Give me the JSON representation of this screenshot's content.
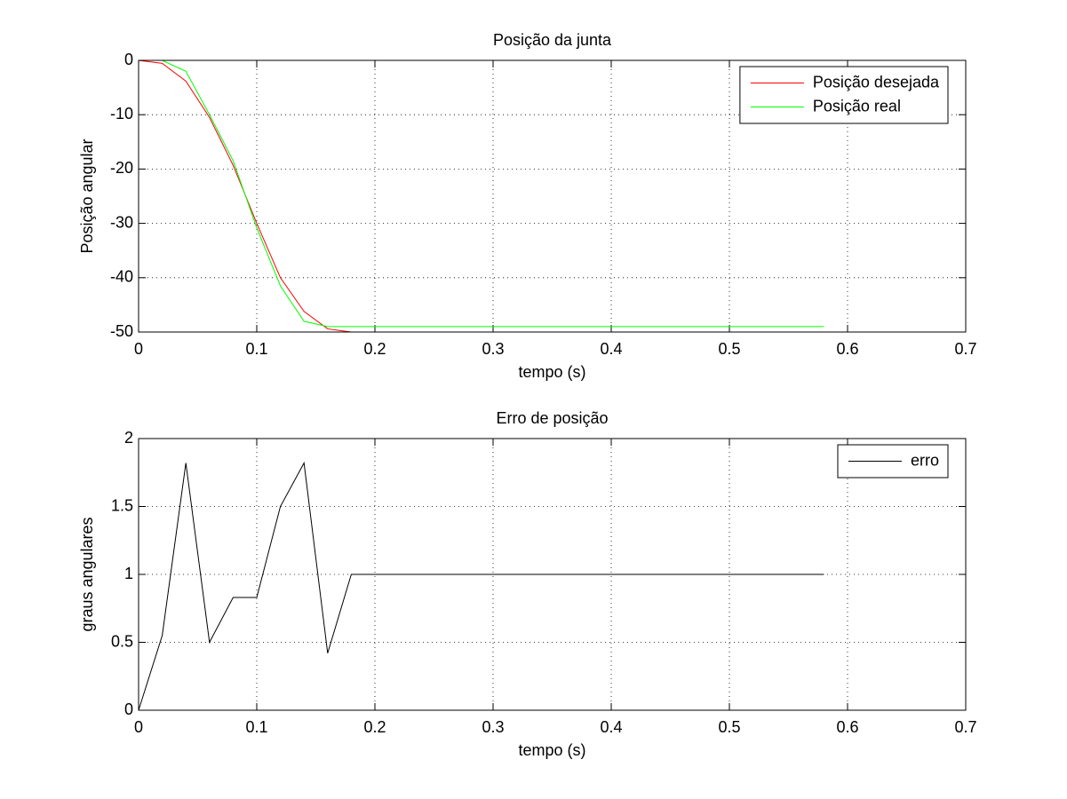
{
  "chart_data": [
    {
      "type": "line",
      "title": "Posição da junta",
      "xlabel": "tempo (s)",
      "ylabel": "Posição angular",
      "x": [
        0,
        0.02,
        0.04,
        0.06,
        0.08,
        0.1,
        0.12,
        0.14,
        0.16,
        0.18,
        0.2,
        0.22,
        0.24,
        0.26,
        0.28,
        0.3,
        0.32,
        0.34,
        0.36,
        0.38,
        0.4,
        0.42,
        0.44,
        0.46,
        0.48,
        0.5,
        0.52,
        0.54,
        0.56,
        0.58
      ],
      "series": [
        {
          "name": "Posição desejada",
          "color": "#ff0000",
          "values": [
            0,
            -0.55,
            -3.82,
            -10.5,
            -19.3,
            -30,
            -40,
            -46.2,
            -49.42,
            -50,
            -50,
            -50,
            -50,
            -50,
            -50,
            -50,
            -50,
            -50,
            -50,
            -50,
            -50,
            -50,
            -50,
            -50,
            -50,
            -50,
            -50,
            -50,
            -50,
            -50
          ]
        },
        {
          "name": "Posição real",
          "color": "#00ff00",
          "values": [
            0,
            0,
            -2,
            -10,
            -18.47,
            -30.83,
            -41.5,
            -48.02,
            -49,
            -49,
            -49,
            -49,
            -49,
            -49,
            -49,
            -49,
            -49,
            -49,
            -49,
            -49,
            -49,
            -49,
            -49,
            -49,
            -49,
            -49,
            -49,
            -49,
            -49,
            -49
          ]
        }
      ],
      "xlim": [
        0,
        0.7
      ],
      "ylim": [
        -50,
        0
      ],
      "xticks": [
        0,
        0.1,
        0.2,
        0.3,
        0.4,
        0.5,
        0.6,
        0.7
      ],
      "yticks": [
        -50,
        -40,
        -30,
        -20,
        -10,
        0
      ],
      "grid": true,
      "legend": "upper right"
    },
    {
      "type": "line",
      "title": "Erro de posição",
      "xlabel": "tempo (s)",
      "ylabel": "graus angulares",
      "x": [
        0,
        0.02,
        0.04,
        0.06,
        0.08,
        0.1,
        0.12,
        0.14,
        0.16,
        0.18,
        0.2,
        0.22,
        0.24,
        0.26,
        0.28,
        0.3,
        0.32,
        0.34,
        0.36,
        0.38,
        0.4,
        0.42,
        0.44,
        0.46,
        0.48,
        0.5,
        0.52,
        0.54,
        0.56,
        0.58
      ],
      "series": [
        {
          "name": "erro",
          "color": "#000000",
          "values": [
            0,
            0.55,
            1.82,
            0.5,
            0.83,
            0.83,
            1.5,
            1.82,
            0.42,
            1,
            1,
            1,
            1,
            1,
            1,
            1,
            1,
            1,
            1,
            1,
            1,
            1,
            1,
            1,
            1,
            1,
            1,
            1,
            1,
            1
          ]
        }
      ],
      "xlim": [
        0,
        0.7
      ],
      "ylim": [
        0,
        2
      ],
      "xticks": [
        0,
        0.1,
        0.2,
        0.3,
        0.4,
        0.5,
        0.6,
        0.7
      ],
      "yticks": [
        0,
        0.5,
        1,
        1.5,
        2
      ],
      "grid": true,
      "legend": "upper right"
    }
  ]
}
